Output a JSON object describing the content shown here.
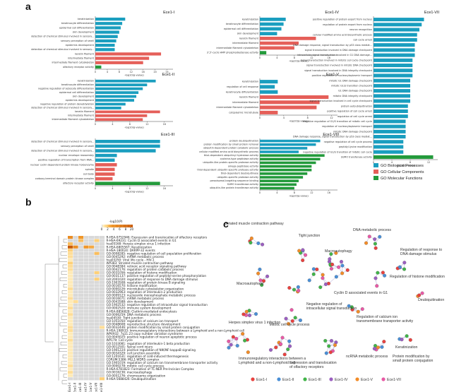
{
  "panel_letters": {
    "a": "a",
    "b": "b",
    "c": "c"
  },
  "colors": {
    "bp": "#1a9ebf",
    "cc": "#e55f59",
    "mf": "#239a3b",
    "axis": "#444444"
  },
  "legend_a": [
    {
      "label": "GO Biological Processes",
      "color": "#1a9ebf"
    },
    {
      "label": "GO Cellular Components",
      "color": "#e55f59"
    },
    {
      "label": "GO Molecular Functions",
      "color": "#239a3b"
    }
  ],
  "chart_data": [
    {
      "type": "bar",
      "title": "Ece1-I",
      "xlabel": "-log10(q-value)",
      "ticks": [
        0,
        4,
        8,
        12,
        16,
        20,
        24
      ],
      "xlim": [
        0,
        26
      ],
      "categories": [
        "keratinization",
        "keratinocyte differentiation",
        "epidermal cell differentiation",
        "skin development",
        "detection of chemical stimulus involved in sensory...",
        "sensory perception of smell",
        "epidermis development",
        "detection of chemical stimulus involved in sensory...",
        "keratin filament",
        "intermediate filament",
        "intermediate filament cytoskeleton",
        "olfactory receptor activity"
      ],
      "values": [
        10,
        9,
        8.5,
        8,
        7.5,
        7,
        6.5,
        6.5,
        22,
        18,
        16,
        2
      ],
      "groups": [
        "bp",
        "bp",
        "bp",
        "bp",
        "bp",
        "bp",
        "bp",
        "bp",
        "cc",
        "cc",
        "cc",
        "mf"
      ]
    },
    {
      "type": "bar",
      "title": "Ece1-II",
      "xlabel": "-log10(q-value)",
      "ticks": [
        0,
        4,
        8,
        12,
        16
      ],
      "xlim": [
        0,
        18
      ],
      "categories": [
        "keratinization",
        "keratinocyte differentiation",
        "negative regulation of sebocyte differentiation",
        "epidermal cell differentiation",
        "skin development",
        "epidermis development",
        "negative regulation of protein deneddylation",
        "detection of chemical stimulus involved in sensory...",
        "keratin filament",
        "intermediate filament",
        "intermediate filament cytoskeleton"
      ],
      "values": [
        14,
        12,
        11,
        10,
        9.5,
        9,
        7,
        6,
        15,
        12,
        11
      ],
      "groups": [
        "bp",
        "bp",
        "bp",
        "bp",
        "bp",
        "bp",
        "bp",
        "bp",
        "cc",
        "cc",
        "cc"
      ]
    },
    {
      "type": "bar",
      "title": "Ece1-III",
      "xlabel": "-log10(q-value)",
      "ticks": [
        0,
        4,
        8,
        12,
        16
      ],
      "xlim": [
        0,
        18
      ],
      "categories": [
        "detection of chemical stimulus involved in sensory...",
        "sensory perception of smell",
        "detection of chemical stimulus involved in sensory...",
        "nuclear envelope reassembly",
        "positive regulation of transcription from RNA...",
        "nuclear cyclin-dependent protein kinase holoenzyme",
        "spindle",
        "cell body",
        "carboxy-terminal domain protein kinase complex",
        "olfactory receptor activity"
      ],
      "values": [
        15,
        15,
        14,
        5,
        4.5,
        5,
        4.5,
        4.5,
        4,
        15
      ],
      "groups": [
        "bp",
        "bp",
        "bp",
        "bp",
        "bp",
        "cc",
        "cc",
        "cc",
        "cc",
        "mf"
      ]
    },
    {
      "type": "bar",
      "title": "Ece1-IV",
      "xlabel": "-log10(q-value)",
      "ticks": [
        0,
        4,
        8,
        12,
        16
      ],
      "xlim": [
        0,
        18
      ],
      "categories": [
        "keratinization",
        "keratinocyte differentiation",
        "epidermal cell differentiation",
        "skin development",
        "keratin filament",
        "intermediate filament",
        "intermediate filament cytoskeleton",
        "3',5'-cyclic-AMP phosphodiesterase activity"
      ],
      "values": [
        6,
        5.5,
        5,
        4,
        13,
        9,
        8,
        1.5
      ],
      "groups": [
        "bp",
        "bp",
        "bp",
        "bp",
        "cc",
        "cc",
        "cc",
        "mf"
      ]
    },
    {
      "type": "bar",
      "title": "Ece1-V",
      "xlabel": "-log10(q-value)",
      "ticks": [
        0,
        4,
        8,
        12
      ],
      "xlim": [
        0,
        13
      ],
      "categories": [
        "keratinization",
        "regulation of cell response",
        "keratinocyte differentiation",
        "keratin filament",
        "intermediate filament",
        "intermediate filament cytoskeleton",
        "cytoplasmic microtubule"
      ],
      "values": [
        3,
        2.5,
        3,
        11.5,
        10,
        9.5,
        3
      ],
      "groups": [
        "bp",
        "bp",
        "bp",
        "cc",
        "cc",
        "cc",
        "cc"
      ]
    },
    {
      "type": "bar",
      "title": "Ece1-VIII",
      "xlabel": "-log10(q-value)",
      "ticks": [
        0,
        4,
        8,
        12,
        16
      ],
      "xlim": [
        0,
        18
      ],
      "categories": [
        "protein deubiquitination",
        "protein modification by small protein removal",
        "ubiquitin-dependent protein catabolic process",
        "cellular modified amino acid biosynthetic process",
        "thiol-dependent ubiquitinyl hydrolase activity",
        "cysteine-type peptidase activity",
        "ubiquitin-like protein-specific protease activity",
        "omega peptidase activity",
        "thiol-dependent ubiquitin-specific protease activity",
        "thiol-dependent deubiquitinase",
        "ubiquitin-specific protease activity",
        "peroxisomal-targeting sequence binding",
        "SUMO transferase activity",
        "ubiquitin-like protein transferase activity"
      ],
      "values": [
        14,
        13,
        11,
        9,
        15,
        14,
        13,
        12,
        12,
        11,
        10,
        9,
        8.5,
        8
      ],
      "groups": [
        "bp",
        "bp",
        "bp",
        "bp",
        "mf",
        "mf",
        "mf",
        "mf",
        "mf",
        "mf",
        "mf",
        "mf",
        "mf",
        "mf"
      ]
    },
    {
      "type": "bar",
      "title": "Ece1-VII",
      "xlabel": "-log10(q-value)",
      "ticks": [
        0,
        4,
        8,
        12
      ],
      "xlim": [
        0,
        14
      ],
      "categories": [
        "positive regulation of protein export from nucleus",
        "regulation of protein export from nucleus",
        "neuron recognition",
        "cellular modified amino acid biosynthetic process",
        "cell cycle arrest",
        "DNA damage response, signal transduction by p53 class mediat...",
        "signal transduction involved in DNA damage checkpoint",
        "intracellular signal transduction involved in G1 DNA damage...",
        "signal transduction involved in mitotic cell cycle checkpoint",
        "signal transduction involved in mitotic DNA checkpoint",
        "signal transduction involved in DNA integrity checkpoint",
        "positive regulation of nucleocytoplasmic transport",
        "mitotic G1 DNA damage checkpoint",
        "mitotic G1/S transition checkpoint",
        "G1 DNA damage checkpoint",
        "mitotic DNA integrity checkpoint",
        "signal transduction involved in cell cycle checkpoint",
        "protein autoubiquitination",
        "positive regulation of cell cycle arrest",
        "regulation of cell cycle arrest",
        "negative regulation of G1/S transition of mitotic cell cycle",
        "regulation of nucleocytoplasmic transport",
        "mitotic DNA damage checkpoint",
        "DNA damage response, signal transduction by p53 class mediat...",
        "negative regulation of cell cycle process",
        "peptidyl-lysine modification",
        "negative regulation of G1/S transition of mitotic cell cycle",
        "SUMO transferase activity"
      ],
      "values": [
        11,
        10.5,
        10,
        9.5,
        9.5,
        9,
        9,
        9,
        8.5,
        8.5,
        8.5,
        8.5,
        8,
        8,
        8,
        8,
        8,
        7.5,
        7.5,
        7.5,
        7,
        7,
        7,
        7,
        6.5,
        6.5,
        6.5,
        13
      ],
      "groups": [
        "bp",
        "bp",
        "bp",
        "bp",
        "bp",
        "bp",
        "bp",
        "bp",
        "bp",
        "bp",
        "bp",
        "bp",
        "bp",
        "bp",
        "bp",
        "bp",
        "bp",
        "bp",
        "bp",
        "bp",
        "bp",
        "bp",
        "bp",
        "bp",
        "bp",
        "bp",
        "bp",
        "mf"
      ]
    },
    {
      "type": "heatmap",
      "title": "-log10(P)",
      "scale_ticks": [
        "0",
        "2",
        "4",
        "6",
        "8",
        "20"
      ],
      "columns": [
        "Ece1-I",
        "Ece1-II",
        "Ece1-III",
        "Ece1-IV",
        "Ece1-V",
        "Ece1-VII",
        "Ece1-VIII"
      ],
      "rows": [
        "R-HSA-9752946: Expression and translocation of olfactory receptors",
        "R-HSA-69231: Cyclin D associated events in G1",
        "hsa05168: Herpes simplex virus 1 infection",
        "R-HSA-6805567: Keratinization",
        "R-HSA-180024: DARPP-32 events",
        "GO:0008285: negative regulation of cell population proliferation",
        "GO:0045292: mRNA metabolic process",
        "hsa03250: Viral life cycle - HIV-1",
        "WP383: Striated muscle contraction pathway",
        "GO:0048384: retinoic acid receptor signaling pathway",
        "GO:0042176: regulation of protein catabolic process",
        "GO:0031056: regulation of histone modification",
        "GO:0031137: positive regulation of peptidyl-serine phosphorylation",
        "GO:2001020: regulation of response to DNA damage stimulus",
        "GO:1903508: regulation of protein kinase B signaling",
        "GO:0016570: histone modification",
        "GO:0000226: microtubule cytoskeleton organization",
        "GO:0032963: regulation of interleukin-2 production",
        "GO:0009123: nucleoside monophosphate metabolic process",
        "GO:0016071: mRNA metabolic process",
        "GO:0043588: skin development",
        "GO:1902532: negative regulation of intracellular signal transduction",
        "GO:0002520: immune system development",
        "R-HSA-8856828: Clathrin-mediated endocytosis",
        "GO:0006259: DNA metabolic process",
        "hsa04530: Tight junction",
        "GO:1051050: regulation of calcium ion transport",
        "GO:0048608: reproductive structure development",
        "GO:0032446: protein modification by small protein conjugation",
        "R-HSA-198933: Immunoregulatory interactions between a Lymphoid and a non-Lymphoid cell",
        "WP4932: 7q11.23 copy number variation syndrome",
        "GO:0045025: positive regulation of neuron apoptotic process",
        "WP179: Cell cycle",
        "GO:1033081: regulation of interleukin-1 beta production",
        "GO:0012501: Spinal cord injury",
        "GO:1901224: positive regulation of NIK/NF-kappaB signaling",
        "GO:0034329: cell junction assembly",
        "GO:1201631: regulation of cold-induced thermogenesis",
        "CORUM:5386: MLL1-WDR5 complex",
        "GO:1901019: regulation of calcium ion transmembrane transporter activity",
        "GO:0000278: mitotic cell cycle process",
        "R-HSA-6781823: Formation of TC-NER Pre-Incision Complex",
        "GO:0016236: macroautophagy",
        "GO:0051276: chromosome organization",
        "R-HSA-5688426: Deubiquitination"
      ],
      "cells": [
        [
          8,
          0,
          6,
          0,
          0,
          0,
          0
        ],
        [
          0,
          0,
          4,
          0,
          0,
          3,
          0
        ],
        [
          4,
          0,
          0,
          0,
          0,
          0,
          0
        ],
        [
          20,
          8,
          0,
          6,
          5,
          0,
          0
        ],
        [
          3,
          0,
          0,
          0,
          0,
          0,
          0
        ],
        [
          2,
          0,
          0,
          0,
          0,
          4,
          0
        ],
        [
          2,
          0,
          0,
          0,
          0,
          0,
          0
        ],
        [
          1,
          0,
          0,
          0,
          0,
          0,
          0
        ],
        [
          3,
          0,
          0,
          0,
          0,
          0,
          0
        ],
        [
          2,
          0,
          0,
          0,
          0,
          0,
          0
        ],
        [
          2,
          0,
          0,
          0,
          0,
          0,
          0
        ],
        [
          1,
          0,
          0,
          0,
          0,
          3,
          0
        ],
        [
          1,
          0,
          0,
          0,
          0,
          0,
          0
        ],
        [
          1,
          0,
          0,
          0,
          0,
          3,
          0
        ],
        [
          1,
          0,
          0,
          0,
          0,
          0,
          0
        ],
        [
          1,
          0,
          0,
          0,
          0,
          0,
          0
        ],
        [
          2,
          0,
          0,
          0,
          0,
          0,
          0
        ],
        [
          1,
          0,
          0,
          0,
          0,
          0,
          0
        ],
        [
          1,
          0,
          0,
          0,
          0,
          0,
          0
        ],
        [
          2,
          0,
          0,
          0,
          0,
          0,
          0
        ],
        [
          1,
          2,
          0,
          0,
          0,
          0,
          0
        ],
        [
          1,
          0,
          0,
          0,
          0,
          0,
          0
        ],
        [
          2,
          0,
          0,
          0,
          0,
          0,
          0
        ],
        [
          1,
          0,
          0,
          0,
          0,
          0,
          0
        ],
        [
          2,
          0,
          0,
          0,
          0,
          0,
          0
        ],
        [
          1,
          0,
          0,
          0,
          0,
          0,
          0
        ],
        [
          1,
          0,
          0,
          0,
          0,
          0,
          0
        ],
        [
          1,
          0,
          0,
          0,
          0,
          0,
          0
        ],
        [
          2,
          0,
          0,
          0,
          0,
          0,
          2
        ],
        [
          2,
          0,
          0,
          0,
          0,
          0,
          0
        ],
        [
          1,
          0,
          0,
          0,
          0,
          0,
          0
        ],
        [
          1,
          0,
          0,
          0,
          0,
          0,
          0
        ],
        [
          2,
          0,
          0,
          0,
          0,
          0,
          0
        ],
        [
          1,
          0,
          0,
          0,
          0,
          0,
          0
        ],
        [
          1,
          0,
          0,
          0,
          0,
          0,
          0
        ],
        [
          1,
          0,
          0,
          0,
          0,
          0,
          0
        ],
        [
          1,
          0,
          0,
          0,
          0,
          0,
          0
        ],
        [
          1,
          0,
          0,
          0,
          0,
          0,
          0
        ],
        [
          1,
          0,
          0,
          0,
          0,
          0,
          0
        ],
        [
          1,
          0,
          0,
          0,
          0,
          0,
          0
        ],
        [
          2,
          0,
          0,
          0,
          0,
          0,
          0
        ],
        [
          1,
          0,
          0,
          0,
          0,
          0,
          0
        ],
        [
          2,
          0,
          0,
          0,
          0,
          0,
          0
        ],
        [
          1,
          0,
          0,
          0,
          0,
          0,
          0
        ],
        [
          0,
          0,
          0,
          0,
          0,
          0,
          3
        ]
      ]
    }
  ],
  "network": {
    "labels": [
      "Striated muscle contraction pathway",
      "Tight junction",
      "DNA metabolic process",
      "Macroautophagy",
      "Regulation of response to DNA damage stimulus",
      "Regulation of histone modification",
      "Macroautophagy",
      "Cyclin D associated events in G1",
      "Negative regulation of intracellular signal transduction",
      "Deubiquitination",
      "Herpes simplex virus 1 infection",
      "Mitotic cell cycle process",
      "Regulation of calcium ion transmembrane transporter activity",
      "Immunoregulatory interactions between a Lymphoid and a non-Lymphoid cell",
      "Expression and translocation of olfactory receptors",
      "ncRNA metabolic process",
      "Protein modification by small protein conjugation",
      "Keratinization"
    ],
    "legend": [
      {
        "label": "Ece1-I",
        "color": "#e8423f"
      },
      {
        "label": "Ece1-II",
        "color": "#4a8fd6"
      },
      {
        "label": "Ece1-III",
        "color": "#41b449"
      },
      {
        "label": "Ece1-IV",
        "color": "#9b5fc0"
      },
      {
        "label": "Ece1-V",
        "color": "#f28c28"
      },
      {
        "label": "Ece1-VII",
        "color": "#e75aa5"
      }
    ]
  }
}
